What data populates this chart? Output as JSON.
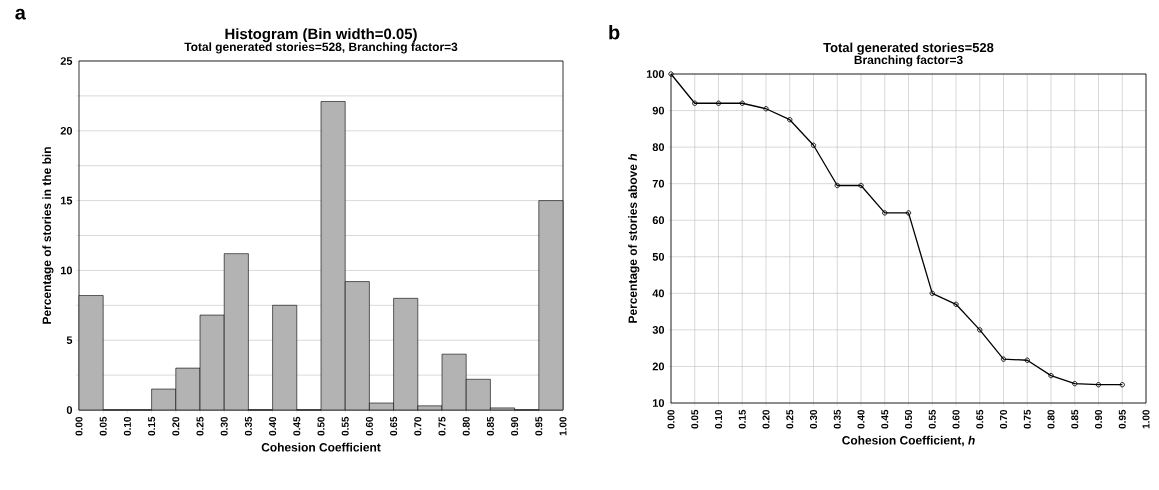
{
  "chart_data": [
    {
      "type": "histogram",
      "title": "Histogram (Bin width=0.05)",
      "subtitle": "Total generated stories=528, Branching factor=3",
      "xlabel": "Cohesion Coefficient",
      "ylabel": "Percentage of stories in the bin",
      "annotations": [
        "a"
      ],
      "bins": [
        0,
        0.05,
        0.1,
        0.15,
        0.2,
        0.25,
        0.3,
        0.35,
        0.4,
        0.45,
        0.5,
        0.55,
        0.6,
        0.65,
        0.7,
        0.75,
        0.8,
        0.85,
        0.9,
        0.95,
        1.0
      ],
      "values": [
        8.2,
        0,
        0,
        1.5,
        3,
        6.8,
        11.2,
        0,
        7.5,
        0,
        22.1,
        9.2,
        0.5,
        8,
        0.3,
        4,
        2.2,
        0.15,
        0,
        15
      ],
      "color": "#b3b3b3",
      "xlim": [
        0,
        1
      ],
      "xticks": [
        {
          "value": 0,
          "label": "0.00"
        },
        0.05,
        {
          "value": 0.1,
          "label": "0.10"
        },
        0.15,
        {
          "value": 0.2,
          "label": "0.20"
        },
        0.25,
        {
          "value": 0.3,
          "label": "0.30"
        },
        0.35,
        {
          "value": 0.4,
          "label": "0.40"
        },
        0.45,
        {
          "value": 0.5,
          "label": "0.50"
        },
        0.55,
        {
          "value": 0.6,
          "label": "0.60"
        },
        0.65,
        {
          "value": 0.7,
          "label": "0.70"
        },
        0.75,
        {
          "value": 0.8,
          "label": "0.80"
        },
        0.85,
        {
          "value": 0.9,
          "label": "0.90"
        },
        0.95,
        {
          "value": 1,
          "label": "1.00"
        }
      ],
      "ylim": [
        0,
        25
      ],
      "yticks": [
        0,
        {
          "value": 2.5,
          "label": null
        },
        5,
        {
          "value": 7.5,
          "label": null
        },
        10,
        {
          "value": 12.5,
          "label": null
        },
        15,
        {
          "value": 17.5,
          "label": null
        },
        20,
        {
          "value": 22.5,
          "label": null
        },
        25
      ],
      "grid": "y"
    },
    {
      "type": "line",
      "title": "Total generated stories=528",
      "subtitle": "Branching factor=3",
      "xlabel": "Cohesion Coefficient, *h*",
      "ylabel": "Percentage of stories above *h*",
      "annotations": [
        "b"
      ],
      "x": [
        0,
        0.05,
        0.1,
        0.15,
        0.2,
        0.25,
        0.3,
        0.35,
        0.4,
        0.45,
        0.5,
        0.55,
        0.6,
        0.65,
        0.7,
        0.75,
        0.8,
        0.85,
        0.9,
        0.95
      ],
      "values": [
        100,
        92,
        92,
        92,
        90.5,
        87.5,
        80.5,
        69.5,
        69.5,
        62,
        62,
        40,
        37,
        30,
        22,
        21.7,
        17.5,
        15.3,
        15,
        15
      ],
      "color": "#000000",
      "marker": "circle",
      "xlim": [
        0,
        1
      ],
      "xticks": [
        {
          "value": 0,
          "label": "0.00"
        },
        0.05,
        {
          "value": 0.1,
          "label": "0.10"
        },
        0.15,
        {
          "value": 0.2,
          "label": "0.20"
        },
        0.25,
        {
          "value": 0.3,
          "label": "0.30"
        },
        0.35,
        {
          "value": 0.4,
          "label": "0.40"
        },
        0.45,
        {
          "value": 0.5,
          "label": "0.50"
        },
        0.55,
        {
          "value": 0.6,
          "label": "0.60"
        },
        0.65,
        {
          "value": 0.7,
          "label": "0.70"
        },
        0.75,
        {
          "value": 0.8,
          "label": "0.80"
        },
        0.85,
        {
          "value": 0.9,
          "label": "0.90"
        },
        0.95,
        {
          "value": 1,
          "label": "1.00"
        }
      ],
      "ylim": [
        10,
        100
      ],
      "yticks": [
        10,
        20,
        30,
        40,
        50,
        60,
        70,
        80,
        90,
        100
      ],
      "grid": true
    }
  ]
}
